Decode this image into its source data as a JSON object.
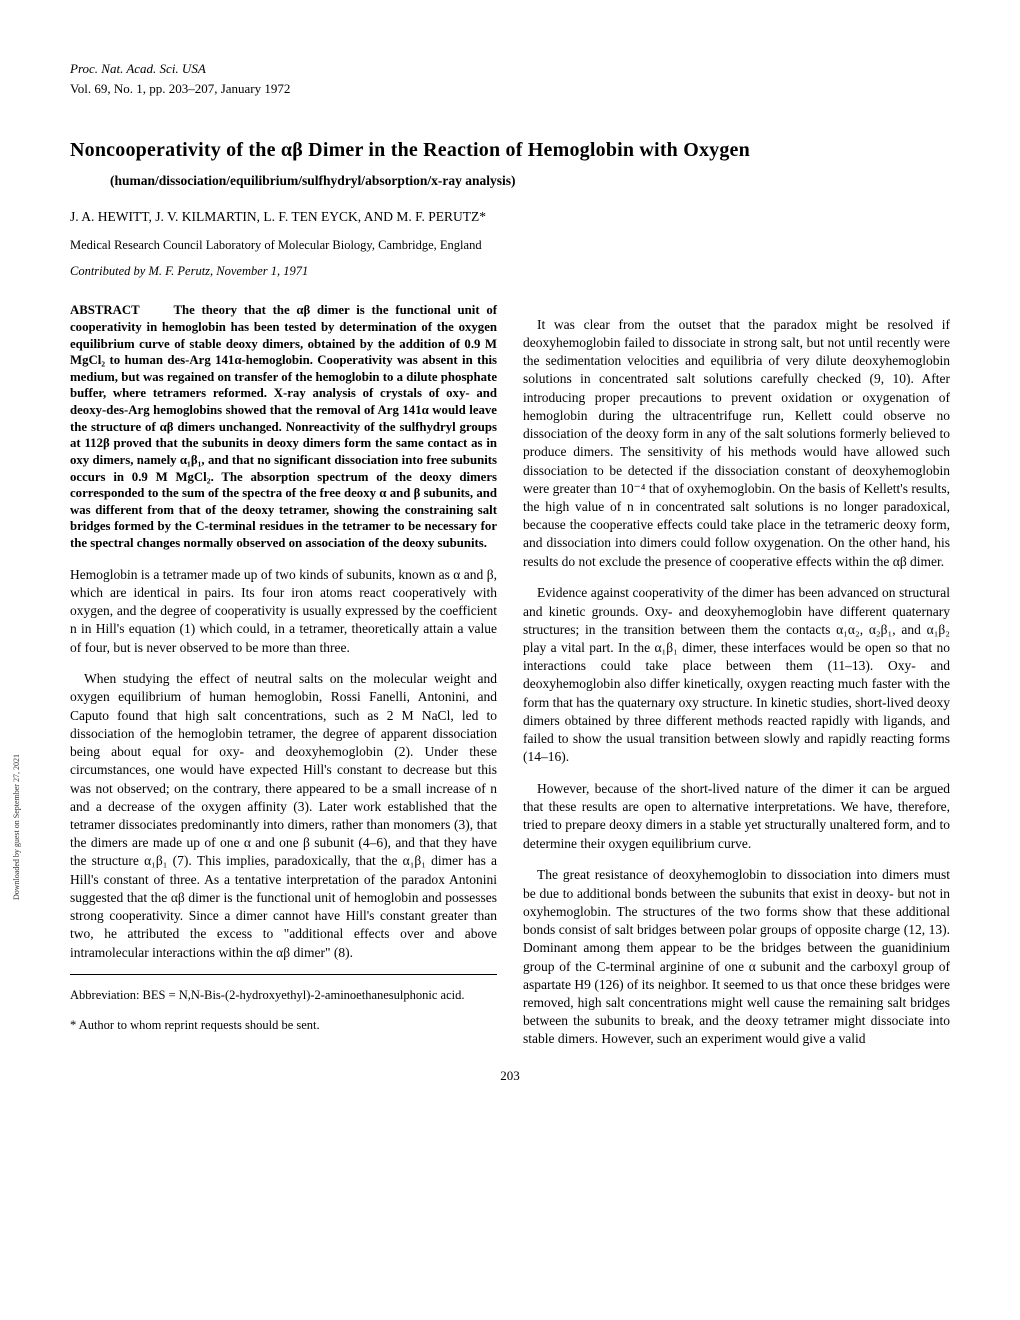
{
  "header": {
    "bib": "Proc. Nat. Acad. Sci. USA",
    "vol": "Vol. 69, No. 1, pp. 203–207, January 1972"
  },
  "title": "Noncooperativity of the αβ Dimer in the Reaction of Hemoglobin with Oxygen",
  "subtitle": "(human/dissociation/equilibrium/sulfhydryl/absorption/x-ray analysis)",
  "authors": "J. A. HEWITT, J. V. KILMARTIN, L. F. TEN EYCK, AND M. F. PERUTZ*",
  "affiliation": "Medical Research Council Laboratory of Molecular Biology, Cambridge, England",
  "contributed": "Contributed by M. F. Perutz, November 1, 1971",
  "abstract": {
    "label": "ABSTRACT",
    "text": "The theory that the αβ dimer is the functional unit of cooperativity in hemoglobin has been tested by determination of the oxygen equilibrium curve of stable deoxy dimers, obtained by the addition of 0.9 M MgCl₂ to human des-Arg 141α-hemoglobin. Cooperativity was absent in this medium, but was regained on transfer of the hemoglobin to a dilute phosphate buffer, where tetramers reformed. X-ray analysis of crystals of oxy- and deoxy-des-Arg hemoglobins showed that the removal of Arg 141α would leave the structure of αβ dimers unchanged. Nonreactivity of the sulfhydryl groups at 112β proved that the subunits in deoxy dimers form the same contact as in oxy dimers, namely α₁β₁, and that no significant dissociation into free subunits occurs in 0.9 M MgCl₂. The absorption spectrum of the deoxy dimers corresponded to the sum of the spectra of the free deoxy α and β subunits, and was different from that of the deoxy tetramer, showing the constraining salt bridges formed by the C-terminal residues in the tetramer to be necessary for the spectral changes normally observed on association of the deoxy subunits."
  },
  "col1": {
    "p1": "Hemoglobin is a tetramer made up of two kinds of subunits, known as α and β, which are identical in pairs. Its four iron atoms react cooperatively with oxygen, and the degree of cooperativity is usually expressed by the coefficient n in Hill's equation (1) which could, in a tetramer, theoretically attain a value of four, but is never observed to be more than three.",
    "p2": "When studying the effect of neutral salts on the molecular weight and oxygen equilibrium of human hemoglobin, Rossi Fanelli, Antonini, and Caputo found that high salt concentrations, such as 2 M NaCl, led to dissociation of the hemoglobin tetramer, the degree of apparent dissociation being about equal for oxy- and deoxyhemoglobin (2). Under these circumstances, one would have expected Hill's constant to decrease but this was not observed; on the contrary, there appeared to be a small increase of n and a decrease of the oxygen affinity (3). Later work established that the tetramer dissociates predominantly into dimers, rather than monomers (3), that the dimers are made up of one α and one β subunit (4–6), and that they have the structure α₁β₁ (7). This implies, paradoxically, that the α₁β₁ dimer has a Hill's constant of three. As a tentative interpretation of the paradox Antonini suggested that the αβ dimer is the functional unit of hemoglobin and possesses strong cooperativity. Since a dimer cannot have Hill's constant greater than two, he attributed the excess to \"additional effects over and above intramolecular interactions within the αβ dimer\" (8)."
  },
  "col2": {
    "p1": "It was clear from the outset that the paradox might be resolved if deoxyhemoglobin failed to dissociate in strong salt, but not until recently were the sedimentation velocities and equilibria of very dilute deoxyhemoglobin solutions in concentrated salt solutions carefully checked (9, 10). After introducing proper precautions to prevent oxidation or oxygenation of hemoglobin during the ultracentrifuge run, Kellett could observe no dissociation of the deoxy form in any of the salt solutions formerly believed to produce dimers. The sensitivity of his methods would have allowed such dissociation to be detected if the dissociation constant of deoxyhemoglobin were greater than 10⁻⁴ that of oxyhemoglobin. On the basis of Kellett's results, the high value of n in concentrated salt solutions is no longer paradoxical, because the cooperative effects could take place in the tetrameric deoxy form, and dissociation into dimers could follow oxygenation. On the other hand, his results do not exclude the presence of cooperative effects within the αβ dimer.",
    "p2": "Evidence against cooperativity of the dimer has been advanced on structural and kinetic grounds. Oxy- and deoxyhemoglobin have different quaternary structures; in the transition between them the contacts α₁α₂, α₂β₁, and α₁β₂ play a vital part. In the α₁β₁ dimer, these interfaces would be open so that no interactions could take place between them (11–13). Oxy- and deoxyhemoglobin also differ kinetically, oxygen reacting much faster with the form that has the quaternary oxy structure. In kinetic studies, short-lived deoxy dimers obtained by three different methods reacted rapidly with ligands, and failed to show the usual transition between slowly and rapidly reacting forms (14–16).",
    "p3": "However, because of the short-lived nature of the dimer it can be argued that these results are open to alternative interpretations. We have, therefore, tried to prepare deoxy dimers in a stable yet structurally unaltered form, and to determine their oxygen equilibrium curve.",
    "p4": "The great resistance of deoxyhemoglobin to dissociation into dimers must be due to additional bonds between the subunits that exist in deoxy- but not in oxyhemoglobin. The structures of the two forms show that these additional bonds consist of salt bridges between polar groups of opposite charge (12, 13). Dominant among them appear to be the bridges between the guanidinium group of the C-terminal arginine of one α subunit and the carboxyl group of aspartate H9 (126) of its neighbor. It seemed to us that once these bridges were removed, high salt concentrations might well cause the remaining salt bridges between the subunits to break, and the deoxy tetramer might dissociate into stable dimers. However, such an experiment would give a valid"
  },
  "footnotes": {
    "abbrev": "Abbreviation: BES = N,N-Bis-(2-hydroxyethyl)-2-aminoethanesulphonic acid.",
    "corresp": "* Author to whom reprint requests should be sent."
  },
  "page_number": "203",
  "side_text": "Downloaded by guest on September 27, 2021"
}
